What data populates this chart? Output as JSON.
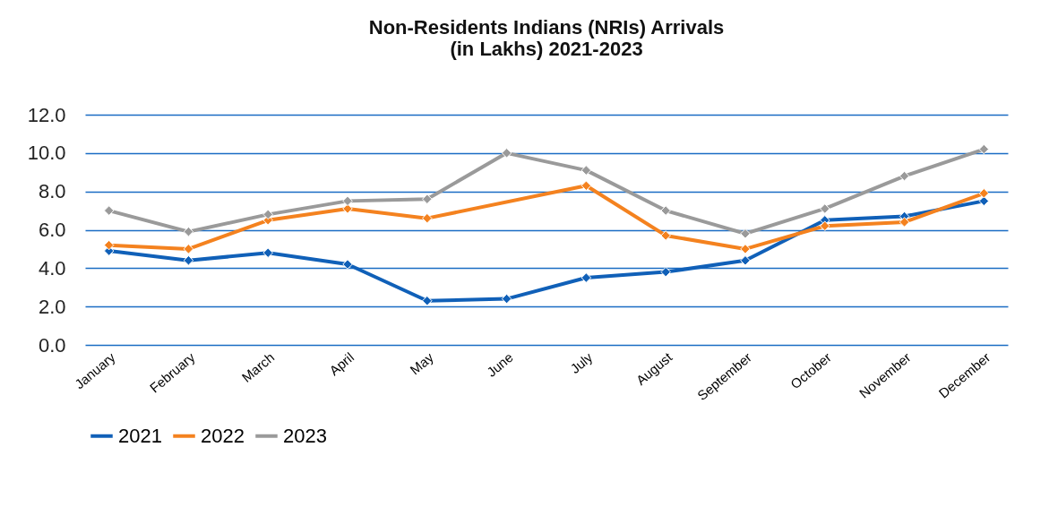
{
  "chart_data": {
    "type": "line",
    "title": [
      "Non-Residents Indians (NRIs) Arrivals",
      "(in Lakhs) 2021-2023"
    ],
    "categories": [
      "January",
      "February",
      "March",
      "April",
      "May",
      "June",
      "July",
      "August",
      "September",
      "October",
      "November",
      "December"
    ],
    "series": [
      {
        "name": "2021",
        "color": "#1060b8",
        "values": [
          4.9,
          4.4,
          4.8,
          4.2,
          2.3,
          2.4,
          3.5,
          3.8,
          4.4,
          6.5,
          6.7,
          7.5
        ]
      },
      {
        "name": "2022",
        "color": "#f4821f",
        "values": [
          5.2,
          5.0,
          6.5,
          7.1,
          6.6,
          null,
          8.3,
          5.7,
          5.0,
          6.2,
          6.4,
          7.9
        ]
      },
      {
        "name": "2023",
        "color": "#9a9a9a",
        "values": [
          7.0,
          5.9,
          6.8,
          7.5,
          7.6,
          10.0,
          9.1,
          7.0,
          5.8,
          7.1,
          8.8,
          10.2
        ]
      }
    ],
    "ylim": [
      0,
      12
    ],
    "yticks": [
      {
        "value": 0,
        "label": "0.0"
      },
      {
        "value": 2,
        "label": "2.0"
      },
      {
        "value": 4,
        "label": "4.0"
      },
      {
        "value": 6,
        "label": "6.0"
      },
      {
        "value": 8,
        "label": "8.0"
      },
      {
        "value": 10,
        "label": "10.0"
      },
      {
        "value": 12,
        "label": "12.0"
      }
    ],
    "grid": "y",
    "legend": "bottom",
    "marker": "diamond",
    "line_style": "solid"
  }
}
